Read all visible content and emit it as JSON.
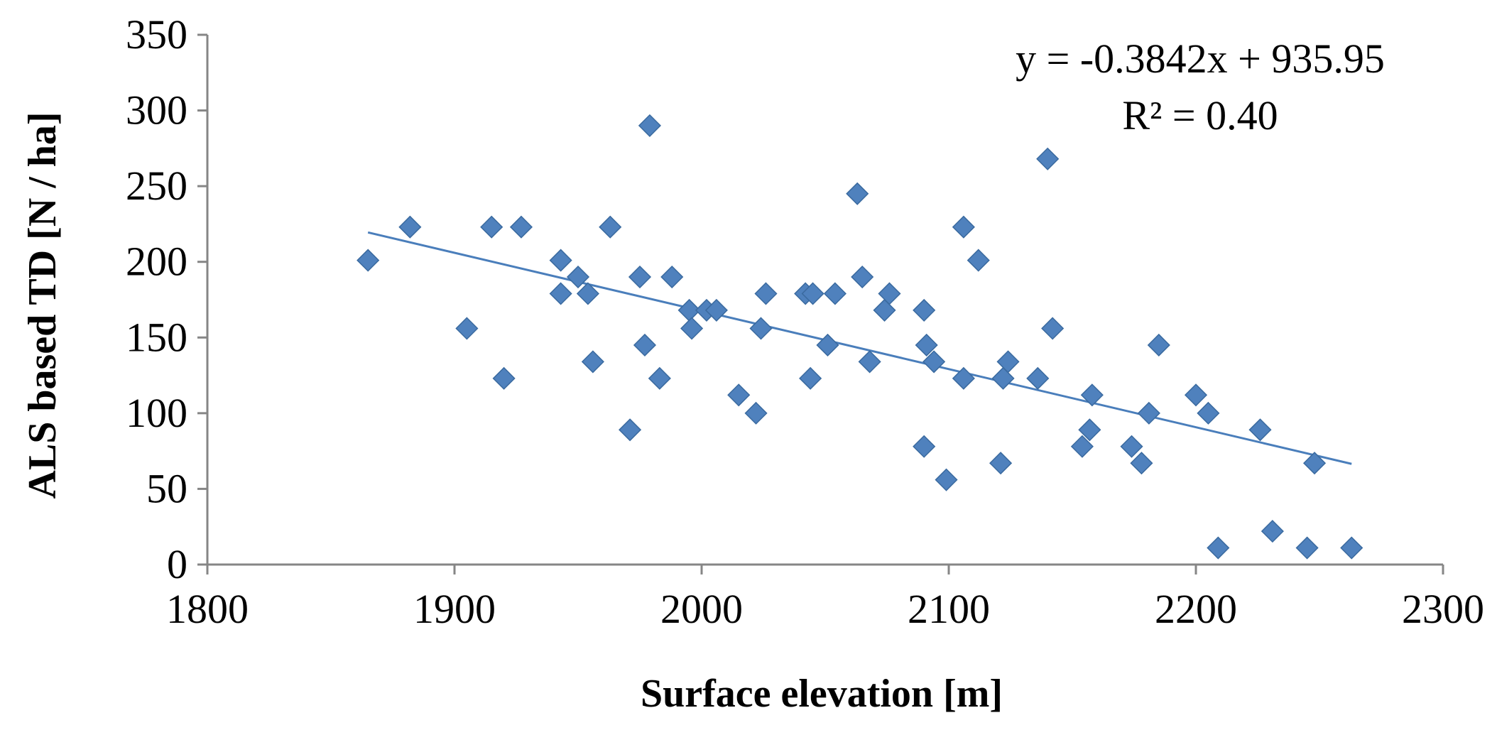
{
  "chart_data": {
    "type": "scatter",
    "title": "",
    "xlabel": "Surface elevation [m]",
    "ylabel": "ALS based TD [N / ha]",
    "xlim": [
      1800,
      2300
    ],
    "ylim": [
      0,
      350
    ],
    "xticks": [
      1800,
      1900,
      2000,
      2100,
      2200,
      2300
    ],
    "yticks": [
      0,
      50,
      100,
      150,
      200,
      250,
      300,
      350
    ],
    "grid": false,
    "marker_color": "#4F81BD",
    "trendline_color": "#4A7EBB",
    "series": [
      {
        "name": "TD",
        "points": [
          [
            1865,
            201
          ],
          [
            1882,
            223
          ],
          [
            1905,
            156
          ],
          [
            1915,
            223
          ],
          [
            1920,
            123
          ],
          [
            1927,
            223
          ],
          [
            1943,
            201
          ],
          [
            1943,
            179
          ],
          [
            1950,
            190
          ],
          [
            1954,
            179
          ],
          [
            1956,
            134
          ],
          [
            1963,
            223
          ],
          [
            1971,
            89
          ],
          [
            1975,
            190
          ],
          [
            1977,
            145
          ],
          [
            1979,
            290
          ],
          [
            1983,
            123
          ],
          [
            1988,
            190
          ],
          [
            1995,
            168
          ],
          [
            1996,
            156
          ],
          [
            2002,
            168
          ],
          [
            2006,
            168
          ],
          [
            2015,
            112
          ],
          [
            2022,
            100
          ],
          [
            2024,
            156
          ],
          [
            2026,
            179
          ],
          [
            2042,
            179
          ],
          [
            2044,
            123
          ],
          [
            2045,
            179
          ],
          [
            2051,
            145
          ],
          [
            2054,
            179
          ],
          [
            2063,
            245
          ],
          [
            2065,
            190
          ],
          [
            2068,
            134
          ],
          [
            2074,
            168
          ],
          [
            2076,
            179
          ],
          [
            2090,
            168
          ],
          [
            2090,
            78
          ],
          [
            2091,
            145
          ],
          [
            2094,
            134
          ],
          [
            2099,
            56
          ],
          [
            2106,
            123
          ],
          [
            2106,
            223
          ],
          [
            2112,
            201
          ],
          [
            2121,
            67
          ],
          [
            2122,
            123
          ],
          [
            2124,
            134
          ],
          [
            2136,
            123
          ],
          [
            2140,
            268
          ],
          [
            2142,
            156
          ],
          [
            2154,
            78
          ],
          [
            2157,
            89
          ],
          [
            2158,
            112
          ],
          [
            2174,
            78
          ],
          [
            2178,
            67
          ],
          [
            2181,
            100
          ],
          [
            2185,
            145
          ],
          [
            2200,
            112
          ],
          [
            2205,
            100
          ],
          [
            2209,
            11
          ],
          [
            2226,
            89
          ],
          [
            2231,
            22
          ],
          [
            2245,
            11
          ],
          [
            2248,
            67
          ],
          [
            2263,
            11
          ]
        ]
      }
    ],
    "trendline": {
      "slope": -0.3842,
      "intercept": 935.95,
      "x_range": [
        1865,
        2263
      ],
      "equation_label": "y = -0.3842x + 935.95",
      "r2_label": "R² = 0.40"
    }
  }
}
